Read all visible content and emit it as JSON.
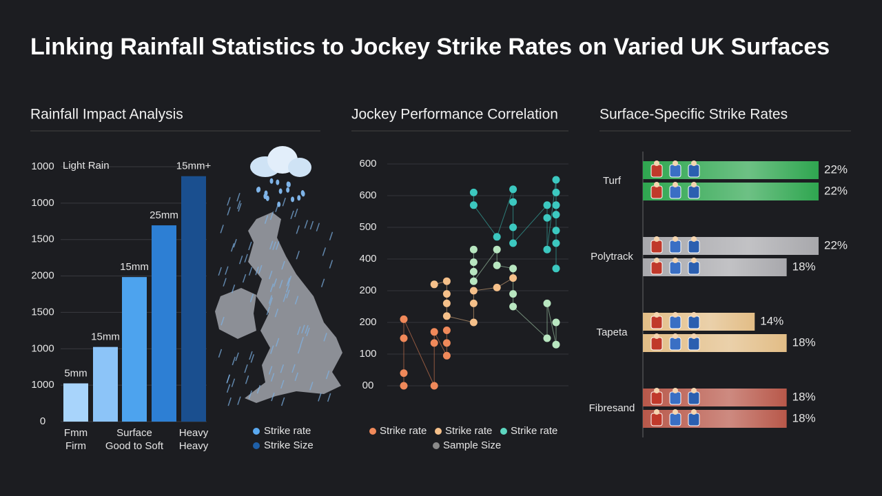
{
  "title": "Linking Rainfall Statistics to Jockey Strike Rates on Varied UK Surfaces",
  "chart_data": [
    {
      "type": "bar",
      "title": "Rainfall Impact Analysis",
      "categories": [
        [
          "Fmm",
          "Firm"
        ],
        null,
        [
          "Surface",
          "Good to Soft"
        ],
        null,
        [
          "Heavy",
          "Heavy"
        ]
      ],
      "values": [
        1.05,
        2.05,
        3.97,
        5.39,
        6.74
      ],
      "colors": [
        "#a8d4fb",
        "#8cc4f8",
        "#4da3ee",
        "#2d7fd4",
        "#1a4f8f"
      ],
      "bar_labels": [
        "5mm",
        "15mm",
        "15mm",
        "25mm",
        "15mm+"
      ],
      "annotation": "Light Rain",
      "ylim": [
        0,
        7
      ],
      "yticks": [
        0,
        {
          "value": 1,
          "label": "1000"
        },
        {
          "value": 2,
          "label": "1000"
        },
        {
          "value": 3,
          "label": "1500"
        },
        {
          "value": 4,
          "label": "2000"
        },
        {
          "value": 5,
          "label": "1500"
        },
        {
          "value": 6,
          "label": "1000"
        },
        {
          "value": 7,
          "label": "1000"
        }
      ],
      "grid": true,
      "legend": [
        {
          "name": "Strike rate",
          "color": "#5aa9f0"
        },
        {
          "name": "Strike Size",
          "color": "#1e5fa8"
        }
      ]
    },
    {
      "type": "scatter",
      "title": "Jockey Performance Correlation",
      "xlim": [
        0,
        10
      ],
      "ylim": [
        0,
        7
      ],
      "yticks": [
        {
          "value": 0,
          "label": "00"
        },
        {
          "value": 1,
          "label": "100"
        },
        {
          "value": 2,
          "label": "200"
        },
        {
          "value": 3,
          "label": "200"
        },
        {
          "value": 4,
          "label": "400"
        },
        {
          "value": 5,
          "label": "500"
        },
        {
          "value": 6,
          "label": "600"
        },
        {
          "value": 7,
          "label": "600"
        }
      ],
      "grid": true,
      "series": [
        {
          "name": "Strike rate",
          "color": "#f0895a",
          "x": [
            1,
            1,
            1,
            1,
            2.7,
            2.7,
            2.7,
            3.4,
            3.4,
            3.4
          ],
          "values": [
            0,
            0.4,
            1.5,
            2.1,
            0,
            1.35,
            1.7,
            0.95,
            1.35,
            1.75
          ]
        },
        {
          "name": "Strike rate",
          "color": "#f5c08a",
          "x": [
            2.7,
            3.4,
            3.4,
            3.4,
            3.4,
            4.9,
            4.9,
            4.9,
            6.2,
            7.1
          ],
          "values": [
            3.2,
            3.3,
            2.9,
            2.6,
            2.2,
            2.0,
            2.6,
            3.0,
            3.1,
            3.4
          ]
        },
        {
          "name": "Strike rate",
          "color": "#3cc8c0",
          "x": [
            4.9,
            4.9,
            6.2,
            7.1,
            7.1,
            7.1,
            7.1,
            9,
            9,
            9,
            9.5,
            9.5,
            9.5,
            9.5,
            9.5,
            9.5,
            9.5
          ],
          "values": [
            6.1,
            5.7,
            4.7,
            6.2,
            5.8,
            5.0,
            4.5,
            5.7,
            5.3,
            4.3,
            6.5,
            6.1,
            5.7,
            5.4,
            4.9,
            4.5,
            3.7
          ]
        },
        {
          "name": "Sample Size",
          "color": "#b8e6c0",
          "x": [
            4.9,
            4.9,
            4.9,
            4.9,
            6.2,
            6.2,
            7.1,
            7.1,
            7.1,
            9,
            9,
            9.5,
            9.5
          ],
          "values": [
            4.3,
            3.9,
            3.6,
            3.3,
            4.3,
            3.8,
            3.7,
            2.9,
            2.5,
            1.5,
            2.6,
            1.3,
            2.0
          ]
        }
      ],
      "legend": [
        {
          "name": "Strike rate",
          "color": "#f0895a"
        },
        {
          "name": "Strike rate",
          "color": "#f5c08a"
        },
        {
          "name": "Strike rate",
          "color": "#5dd6c0"
        },
        {
          "name": "Sample Size",
          "color": "#8a8a8a"
        }
      ]
    },
    {
      "type": "hbar",
      "title": "Surface-Specific Strike Rates",
      "categories": [
        "Turf",
        "Polytrack",
        "Tapeta",
        "Fibresand"
      ],
      "colors": [
        "#2fa650",
        "#a8a8ac",
        "#e2bd86",
        "#b8584a"
      ],
      "xlim": [
        0,
        22
      ],
      "series": [
        {
          "values": [
            22,
            22,
            14,
            18
          ],
          "value_labels": [
            "22%",
            "22%",
            "14%",
            "18%"
          ]
        },
        {
          "values": [
            22,
            18,
            18,
            18
          ],
          "value_labels": [
            "22%",
            "18%",
            "18%",
            "18%"
          ]
        }
      ]
    }
  ]
}
